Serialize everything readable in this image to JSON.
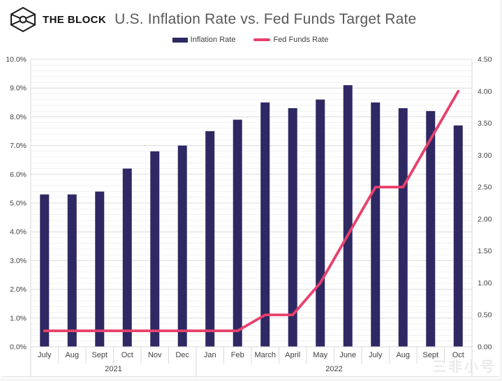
{
  "header": {
    "brand": "THE BLOCK",
    "title": "U.S. Inflation Rate vs. Fed Funds Target Rate"
  },
  "legend": {
    "inflation_label": "Inflation Rate",
    "fed_funds_label": "Fed Funds Rate"
  },
  "watermark": "三非小号",
  "colors": {
    "bar": "#2e2963",
    "line": "#e8406c",
    "grid_major": "#dcdcdc",
    "grid_minor": "#f1f1f1",
    "axis_border": "#d9d9d9",
    "axis_text": "#404040",
    "title_text": "#595959"
  },
  "chart_data": {
    "type": "bar",
    "title": "U.S. Inflation Rate vs. Fed Funds Target Rate",
    "categories": [
      "July",
      "Aug",
      "Sept",
      "Oct",
      "Nov",
      "Dec",
      "Jan",
      "Feb",
      "March",
      "April",
      "May",
      "June",
      "July",
      "Aug",
      "Sept",
      "Oct"
    ],
    "year_groups": [
      {
        "label": "2021",
        "count": 6
      },
      {
        "label": "2022",
        "count": 10
      }
    ],
    "series": [
      {
        "name": "Inflation Rate",
        "type": "bar",
        "axis": "left",
        "values": [
          5.3,
          5.3,
          5.4,
          6.2,
          6.8,
          7.0,
          7.5,
          7.9,
          8.5,
          8.3,
          8.6,
          9.1,
          8.5,
          8.3,
          8.2,
          7.7
        ]
      },
      {
        "name": "Fed Funds Rate",
        "type": "line",
        "axis": "right",
        "values": [
          0.25,
          0.25,
          0.25,
          0.25,
          0.25,
          0.25,
          0.25,
          0.25,
          0.5,
          0.5,
          1.0,
          1.75,
          2.5,
          2.5,
          3.25,
          4.0
        ]
      }
    ],
    "left_axis": {
      "min": 0,
      "max": 10,
      "step": 1.0,
      "minor_step": 0.2,
      "tick_format": "pct_one_decimal",
      "ticks": [
        "0.0%",
        "1.0%",
        "2.0%",
        "3.0%",
        "4.0%",
        "5.0%",
        "6.0%",
        "7.0%",
        "8.0%",
        "9.0%",
        "10.0%"
      ]
    },
    "right_axis": {
      "min": 0,
      "max": 4.5,
      "step": 0.5,
      "tick_format": "two_decimals",
      "ticks": [
        "0.00",
        "0.50",
        "1.00",
        "1.50",
        "2.00",
        "2.50",
        "3.00",
        "3.50",
        "4.00",
        "4.50"
      ]
    },
    "grid": true,
    "legend_position": "top"
  }
}
